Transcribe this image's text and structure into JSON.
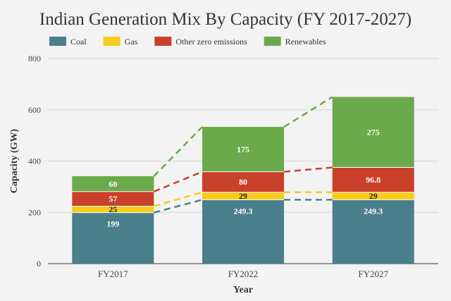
{
  "chart_data": {
    "type": "bar",
    "stacked": true,
    "title": "Indian Generation Mix By Capacity (FY 2017-2027)",
    "xlabel": "Year",
    "ylabel": "Capacity (GW)",
    "ylim": [
      0,
      800
    ],
    "yticks": [
      0,
      200,
      400,
      600,
      800
    ],
    "grid": true,
    "legend_position": "top",
    "categories": [
      "FY2017",
      "FY2022",
      "FY2027"
    ],
    "series": [
      {
        "name": "Coal",
        "color": "#4a7f8c",
        "values": [
          199,
          249.3,
          249.3
        ],
        "labels": [
          "199",
          "249.3",
          "249.3"
        ]
      },
      {
        "name": "Gas",
        "color": "#f7cc1b",
        "values": [
          25,
          29,
          29
        ],
        "labels": [
          "25",
          "29",
          "29"
        ]
      },
      {
        "name": "Other zero emissions",
        "color": "#c9402b",
        "values": [
          57,
          80,
          96.8
        ],
        "labels": [
          "57",
          "80",
          "96.8"
        ]
      },
      {
        "name": "Renewables",
        "color": "#6aaa4b",
        "values": [
          60,
          175,
          275
        ],
        "labels": [
          "60",
          "175",
          "275"
        ]
      }
    ],
    "connector_lines": "dashed"
  }
}
